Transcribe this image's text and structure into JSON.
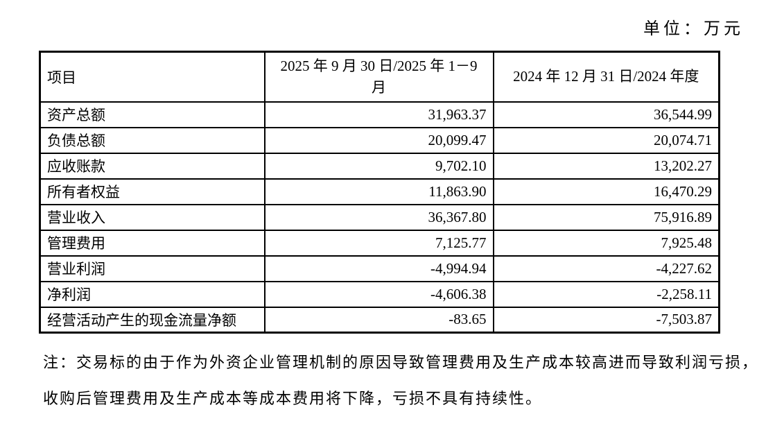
{
  "unit_label": "单位：万元",
  "table": {
    "header": {
      "col_item": "项目",
      "col_current_line1": "2025 年 9 月 30 日/2025 年 1－9",
      "col_current_line2": "月",
      "col_prior": "2024 年 12 月 31 日/2024 年度"
    },
    "rows": [
      {
        "name": "资产总额",
        "current": "31,963.37",
        "prior": "36,544.99"
      },
      {
        "name": "负债总额",
        "current": "20,099.47",
        "prior": "20,074.71"
      },
      {
        "name": "应收账款",
        "current": "9,702.10",
        "prior": "13,202.27"
      },
      {
        "name": "所有者权益",
        "current": "11,863.90",
        "prior": "16,470.29"
      },
      {
        "name": "营业收入",
        "current": "36,367.80",
        "prior": "75,916.89"
      },
      {
        "name": "管理费用",
        "current": "7,125.77",
        "prior": "7,925.48"
      },
      {
        "name": "营业利润",
        "current": "-4,994.94",
        "prior": "-4,227.62"
      },
      {
        "name": "净利润",
        "current": "-4,606.38",
        "prior": "-2,258.11"
      },
      {
        "name": "经营活动产生的现金流量净额",
        "current": "-83.65",
        "prior": "-7,503.87"
      }
    ]
  },
  "note": {
    "lines": [
      "注：交易标的由于作为外资企业管理机制的原因导致管理费用及生产成本较高进而导致利润亏损，",
      "收购后管理费用及生产成本等成本费用将下降，亏损不具有持续性。"
    ]
  }
}
